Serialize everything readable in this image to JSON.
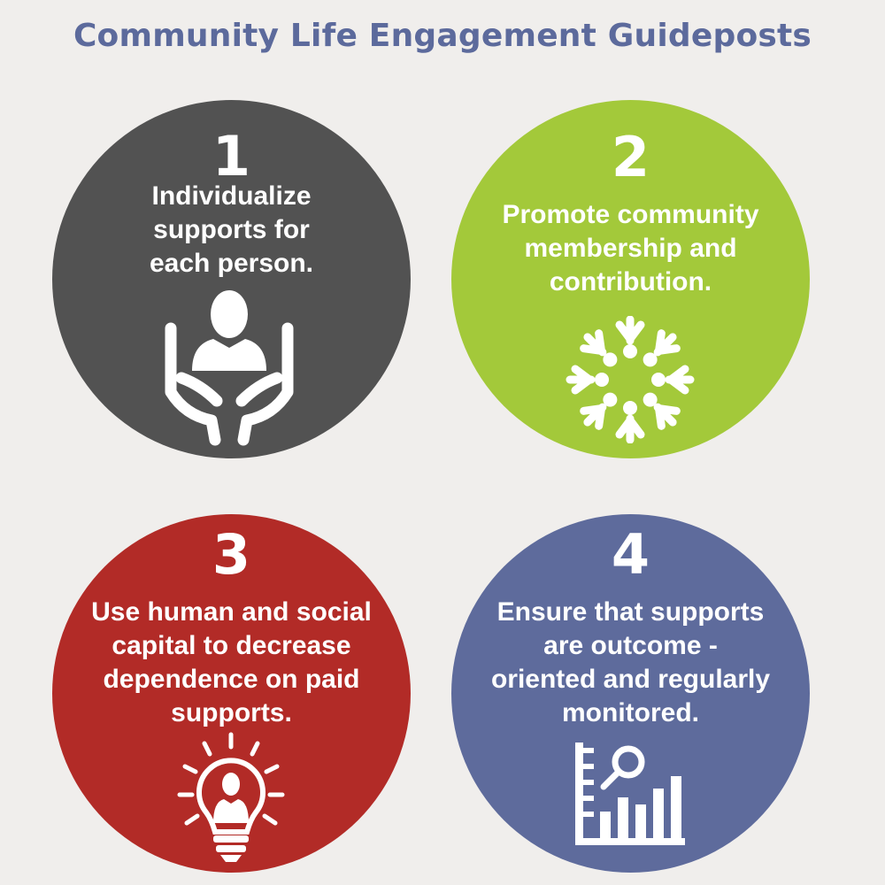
{
  "title": "Community Life Engagement Guideposts",
  "colors": {
    "background": "#f0eeec",
    "title": "#5c6a9c",
    "guidepost_1": "#525252",
    "guidepost_2": "#a3c93a",
    "guidepost_3": "#b22b27",
    "guidepost_4": "#5e6b9c"
  },
  "guideposts": [
    {
      "number": "1",
      "text": "Individualize\nsupports for\neach person.",
      "icon": "hands-holding-person-icon"
    },
    {
      "number": "2",
      "text": "Promote community\nmembership and\ncontribution.",
      "icon": "community-circle-icon"
    },
    {
      "number": "3",
      "text": "Use human and social\ncapital to decrease\ndependence on paid\nsupports.",
      "icon": "lightbulb-person-icon"
    },
    {
      "number": "4",
      "text": "Ensure that supports\nare outcome -\noriented and regularly\nmonitored.",
      "icon": "chart-magnifier-icon"
    }
  ]
}
